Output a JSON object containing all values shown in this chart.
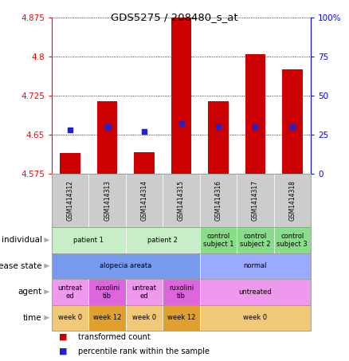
{
  "title": "GDS5275 / 208480_s_at",
  "samples": [
    "GSM1414312",
    "GSM1414313",
    "GSM1414314",
    "GSM1414315",
    "GSM1414316",
    "GSM1414317",
    "GSM1414318"
  ],
  "transformed_count": [
    4.615,
    4.715,
    4.617,
    4.875,
    4.715,
    4.805,
    4.775
  ],
  "percentile_rank": [
    28,
    30,
    27,
    32,
    30,
    30,
    30
  ],
  "ylim_left": [
    4.575,
    4.875
  ],
  "ylim_right": [
    0,
    100
  ],
  "yticks_left": [
    4.575,
    4.65,
    4.725,
    4.8,
    4.875
  ],
  "yticks_right": [
    0,
    25,
    50,
    75,
    100
  ],
  "bar_color": "#cc0000",
  "dot_color": "#2222cc",
  "bar_bottom": 4.575,
  "annotation_rows": {
    "individual": {
      "label": "individual",
      "groups": [
        {
          "cols": [
            0,
            1
          ],
          "text": "patient 1",
          "color": "#c8eec8"
        },
        {
          "cols": [
            2,
            3
          ],
          "text": "patient 2",
          "color": "#c8eec8"
        },
        {
          "cols": [
            4
          ],
          "text": "control\nsubject 1",
          "color": "#88dd88"
        },
        {
          "cols": [
            5
          ],
          "text": "control\nsubject 2",
          "color": "#88dd88"
        },
        {
          "cols": [
            6
          ],
          "text": "control\nsubject 3",
          "color": "#88dd88"
        }
      ]
    },
    "disease_state": {
      "label": "disease state",
      "groups": [
        {
          "cols": [
            0,
            1,
            2,
            3
          ],
          "text": "alopecia areata",
          "color": "#7799ee"
        },
        {
          "cols": [
            4,
            5,
            6
          ],
          "text": "normal",
          "color": "#99aaff"
        }
      ]
    },
    "agent": {
      "label": "agent",
      "groups": [
        {
          "cols": [
            0
          ],
          "text": "untreat\ned",
          "color": "#ee99ee"
        },
        {
          "cols": [
            1
          ],
          "text": "ruxolini\ntib",
          "color": "#dd66dd"
        },
        {
          "cols": [
            2
          ],
          "text": "untreat\ned",
          "color": "#ee99ee"
        },
        {
          "cols": [
            3
          ],
          "text": "ruxolini\ntib",
          "color": "#dd66dd"
        },
        {
          "cols": [
            4,
            5,
            6
          ],
          "text": "untreated",
          "color": "#ee99ee"
        }
      ]
    },
    "time": {
      "label": "time",
      "groups": [
        {
          "cols": [
            0
          ],
          "text": "week 0",
          "color": "#f0c878"
        },
        {
          "cols": [
            1
          ],
          "text": "week 12",
          "color": "#e0a030"
        },
        {
          "cols": [
            2
          ],
          "text": "week 0",
          "color": "#f0c878"
        },
        {
          "cols": [
            3
          ],
          "text": "week 12",
          "color": "#e0a030"
        },
        {
          "cols": [
            4,
            5,
            6
          ],
          "text": "week 0",
          "color": "#f0c878"
        }
      ]
    }
  },
  "row_order": [
    "individual",
    "disease_state",
    "agent",
    "time"
  ],
  "row_labels": [
    "individual",
    "disease state",
    "agent",
    "time"
  ],
  "legend_items": [
    {
      "color": "#cc0000",
      "label": "transformed count"
    },
    {
      "color": "#2222cc",
      "label": "percentile rank within the sample"
    }
  ],
  "sample_bg_color": "#cccccc",
  "plot_bg_color": "#ffffff",
  "fig_width": 4.38,
  "fig_height": 4.53
}
